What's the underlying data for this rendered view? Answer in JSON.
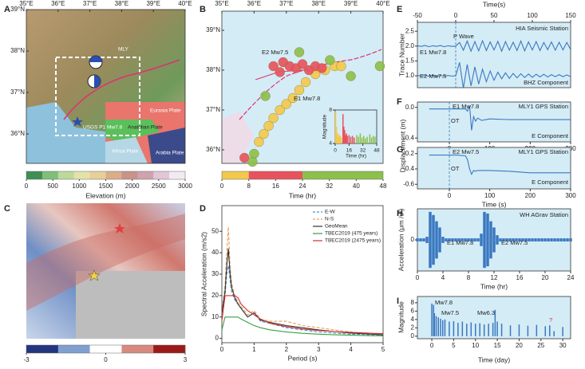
{
  "maps": [
    {
      "panel": "A",
      "xlim": [
        35,
        40
      ],
      "ylim": [
        35.29,
        39
      ],
      "xticks": [
        {
          "value": 35,
          "label": "35°E"
        },
        {
          "value": 36,
          "label": "36°E"
        },
        {
          "value": 37,
          "label": "37°E"
        },
        {
          "value": 38,
          "label": "38°E"
        },
        {
          "value": 39,
          "label": "39°E"
        },
        {
          "value": 40,
          "label": "40°E"
        }
      ],
      "yticks": [
        {
          "value": 39,
          "label": "39°N"
        },
        {
          "value": 38,
          "label": "38°N"
        },
        {
          "value": 37,
          "label": "37°N"
        },
        {
          "value": 36,
          "label": "36°N"
        }
      ],
      "labels": [
        "MLY",
        "USGS P1 Mw7.8",
        "Eurasia Plate",
        "Anatolian Plate",
        "Africa Plate",
        "Arabia Plate"
      ],
      "colorbar": {
        "label": "Elevation (m)",
        "lim": [
          0,
          3000
        ],
        "ticks": [
          0,
          500,
          1000,
          1500,
          2000,
          2500,
          3000
        ],
        "colors": [
          "#3f8f55",
          "#7fbf7a",
          "#bcd99a",
          "#e3e2a8",
          "#e6cf98",
          "#d9ae88",
          "#c9928a",
          "#cfa2ad",
          "#e2c6d6",
          "#f3eaf1"
        ]
      }
    },
    {
      "panel": "B",
      "xlim": [
        35,
        40
      ],
      "ylim": [
        35.66,
        39.48
      ],
      "xticks": [
        {
          "value": 35,
          "label": "35°E"
        },
        {
          "value": 36,
          "label": "36°E"
        },
        {
          "value": 37,
          "label": "37°E"
        },
        {
          "value": 38,
          "label": "38°E"
        },
        {
          "value": 39,
          "label": "39°E"
        },
        {
          "value": 40,
          "label": "40°E"
        }
      ],
      "yticks": [
        {
          "value": 39,
          "label": "39°N"
        },
        {
          "value": 38,
          "label": "38°N"
        },
        {
          "value": 37,
          "label": "37°N"
        },
        {
          "value": 36,
          "label": "36°N"
        }
      ],
      "labels": [
        "E2 Mw7.5",
        "E1 Mw7.8"
      ],
      "points": {
        "lon": [
          36.15,
          36.3,
          36.45,
          36.6,
          36.8,
          37.0,
          37.2,
          37.4,
          37.6,
          37.9,
          38.2,
          38.5,
          38.7,
          36.6,
          36.9,
          37.1,
          37.3,
          37.5,
          37.7,
          37.9,
          38.1,
          36.8,
          35.7,
          36.0,
          35.95,
          37.4,
          38.35,
          39.0,
          39.9,
          36.35
        ],
        "lat": [
          36.2,
          36.4,
          36.6,
          36.8,
          37.0,
          37.15,
          37.3,
          37.5,
          37.7,
          37.9,
          38.0,
          38.1,
          38.1,
          38.1,
          38.2,
          38.1,
          38.05,
          38.15,
          38.0,
          38.1,
          38.05,
          37.95,
          35.8,
          35.9,
          35.7,
          38.45,
          38.25,
          37.85,
          38.1,
          37.35
        ],
        "time": [
          1,
          2,
          3,
          1.5,
          2.5,
          4,
          5,
          6,
          3,
          7,
          6.5,
          5.5,
          4.5,
          10,
          12,
          9.5,
          14,
          11,
          16,
          18,
          20,
          22,
          13,
          30,
          40,
          26,
          35,
          44,
          28,
          33
        ]
      },
      "colorbar": {
        "label": "Time (hr)",
        "lim": [
          0,
          48
        ],
        "ticks": [
          0,
          8,
          16,
          24,
          32,
          40,
          48
        ],
        "segments": [
          {
            "from": 0,
            "to": 8,
            "color": "#f2c94c"
          },
          {
            "from": 8,
            "to": 24,
            "color": "#e8525c"
          },
          {
            "from": 24,
            "to": 48,
            "color": "#8cc04a"
          }
        ]
      },
      "inset": {
        "type": "stem",
        "xlabel": "Time (hr)",
        "ylabel": "Magnitude",
        "xlim": [
          0,
          48
        ],
        "ylim": [
          4,
          8
        ],
        "xticks": [
          0,
          16,
          32,
          48
        ],
        "yticks": [
          4,
          8
        ],
        "x": [
          0.5,
          1,
          1.5,
          2,
          3,
          4,
          5,
          6,
          7,
          9,
          10,
          11,
          12,
          13,
          14,
          16,
          18,
          20,
          22,
          25,
          27,
          29,
          31,
          33,
          35,
          37,
          40,
          42,
          44,
          46
        ],
        "series": [
          {
            "values": [
              7.8,
              5.5,
              6.0,
              5.0,
              5.2,
              4.8,
              5.0,
              4.9,
              4.7,
              7.5,
              6.0,
              5.6,
              5.0,
              5.2,
              4.9,
              5.0,
              4.8,
              4.9,
              4.7,
              5.0,
              4.8,
              5.2,
              4.7,
              4.9,
              4.6,
              4.8,
              5.1,
              4.7,
              4.9,
              4.8
            ]
          }
        ]
      }
    },
    {
      "panel": "C",
      "colorbar": {
        "lim": [
          -3,
          3
        ],
        "ticks": [
          -3,
          0,
          3
        ],
        "colors": [
          "#22357f",
          "#7f9fd0",
          "#ffffff",
          "#d88a80",
          "#9a1a1a"
        ]
      }
    }
  ],
  "chart_data": [
    {
      "type": "line",
      "panel": "D",
      "xlabel": "Period (s)",
      "ylabel": "Spectral Acceleration (m/s2)",
      "xlim": [
        0,
        5
      ],
      "ylim": [
        -2,
        62
      ],
      "xticks": [
        0,
        1,
        2,
        3,
        4,
        5
      ],
      "yticks": [
        0,
        10,
        20,
        30,
        40,
        50
      ],
      "legend": "upper right",
      "background": "#ffffff",
      "x": [
        0,
        0.1,
        0.15,
        0.2,
        0.25,
        0.3,
        0.4,
        0.5,
        0.6,
        0.8,
        1,
        1.2,
        1.5,
        2,
        2.5,
        3,
        3.5,
        4,
        4.5,
        5
      ],
      "series": [
        {
          "name": "E-W",
          "color": "#4a90c8",
          "dash": true,
          "values": [
            12,
            20,
            30,
            34,
            28,
            22,
            18,
            16,
            14,
            10,
            12,
            8,
            7,
            5,
            4,
            3,
            2.5,
            2,
            1.8,
            1.5
          ]
        },
        {
          "name": "N-S",
          "color": "#e8a060",
          "dash": true,
          "values": [
            12,
            25,
            40,
            52,
            35,
            26,
            20,
            17,
            15,
            11,
            13,
            9,
            8,
            8,
            6,
            5,
            4,
            3,
            2.5,
            2
          ]
        },
        {
          "name": "GeoMean",
          "color": "#333333",
          "dash": false,
          "values": [
            12,
            22,
            34,
            42,
            31,
            24,
            19,
            16,
            14,
            10,
            12,
            8.5,
            7.5,
            6,
            5,
            4,
            3.2,
            2.5,
            2.1,
            1.7
          ]
        },
        {
          "name": "TBEC2019 (475 years)",
          "color": "#3aa040",
          "dash": false,
          "values": [
            4,
            10,
            10,
            10,
            10,
            10,
            10,
            10,
            9,
            7.5,
            6,
            5,
            4,
            3,
            2.4,
            2,
            1.7,
            1.5,
            1.3,
            1.2
          ]
        },
        {
          "name": "TBEC2019 (2475 years)",
          "color": "#d03030",
          "dash": false,
          "values": [
            8,
            20,
            20,
            20,
            20,
            20,
            20,
            19,
            16,
            13,
            11,
            9,
            7,
            5.5,
            4.4,
            3.7,
            3.2,
            2.8,
            2.5,
            2.2
          ]
        }
      ]
    },
    {
      "type": "line",
      "panel": "E",
      "xlabel": "Time(s)",
      "ylabel": "Trace Number",
      "xaxis_position": "top",
      "xlim": [
        -50,
        150
      ],
      "ylim": [
        0.6,
        2.8
      ],
      "xticks": [
        -50,
        0,
        50,
        100,
        150
      ],
      "yticks": [
        {
          "value": 1,
          "label": "1.0"
        },
        1.5,
        {
          "value": 2,
          "label": "2.0"
        },
        2.5
      ],
      "background": "#d4ecf6",
      "annotations": [
        "P Wave",
        "HIA Seismic Station",
        "BHZ Component"
      ],
      "x": [
        -50,
        -45,
        -40,
        -35,
        -30,
        -25,
        -20,
        -15,
        -10,
        -5,
        0,
        5,
        10,
        15,
        20,
        25,
        30,
        35,
        40,
        45,
        50,
        55,
        60,
        65,
        70,
        75,
        80,
        85,
        90,
        95,
        100,
        105,
        110,
        115,
        120,
        125,
        130,
        135,
        140,
        145,
        150
      ],
      "series": [
        {
          "name": "E1 Mw7.8",
          "color": "#3a78c0",
          "values": [
            2.01,
            1.99,
            2.02,
            1.98,
            2.01,
            1.99,
            2.02,
            1.98,
            2.01,
            1.99,
            2.0,
            2.12,
            1.86,
            2.17,
            1.83,
            2.15,
            1.84,
            2.18,
            1.85,
            2.14,
            1.87,
            2.16,
            1.83,
            2.15,
            1.86,
            2.13,
            1.85,
            2.17,
            1.84,
            2.14,
            1.87,
            2.15,
            1.85,
            2.12,
            1.88,
            2.14,
            1.86,
            2.13,
            1.87,
            2.12,
            1.88
          ]
        },
        {
          "name": "E2 Mw7.5",
          "color": "#3a78c0",
          "values": [
            1.01,
            0.99,
            1.01,
            0.99,
            1.02,
            0.98,
            1.01,
            0.99,
            1.01,
            0.99,
            1.0,
            1.45,
            0.58,
            1.38,
            0.66,
            1.3,
            0.72,
            1.22,
            0.8,
            1.16,
            0.85,
            1.12,
            0.9,
            1.1,
            0.91,
            1.08,
            0.93,
            1.07,
            0.94,
            1.06,
            0.95,
            1.05,
            0.96,
            1.05,
            0.96,
            1.04,
            0.97,
            1.04,
            0.97,
            1.03,
            0.97
          ]
        }
      ]
    },
    {
      "type": "line",
      "panel": "F",
      "ylabel": "Displacement (m)",
      "xlim": [
        -79,
        300
      ],
      "ylim": [
        -0.45,
        0.07
      ],
      "xticks": [
        0,
        100,
        200,
        300
      ],
      "yticks": [
        {
          "value": 0,
          "label": "0.0"
        },
        -0.4
      ],
      "background": "#d4ecf6",
      "annotations": [
        "E1 Mw7.8",
        "OT",
        "MLY1 GPS Station",
        "E Component"
      ],
      "x": [
        -50,
        0,
        20,
        40,
        45,
        50,
        55,
        60,
        65,
        70,
        80,
        100,
        150,
        200,
        250,
        300
      ],
      "series": [
        {
          "color": "#3a78c0",
          "values": [
            -0.02,
            -0.02,
            -0.02,
            -0.02,
            -0.05,
            0.02,
            -0.3,
            -0.12,
            -0.18,
            -0.14,
            -0.17,
            -0.15,
            -0.16,
            -0.16,
            -0.16,
            -0.16
          ]
        }
      ]
    },
    {
      "type": "line",
      "panel": "G",
      "xlabel": "Time (s)",
      "xlim": [
        -79,
        300
      ],
      "ylim": [
        -0.66,
        -0.12
      ],
      "xticks": [
        0,
        100,
        200,
        300
      ],
      "yticks": [
        -0.2,
        -0.4,
        -0.6
      ],
      "background": "#d4ecf6",
      "annotations": [
        "E2 Mw7.5",
        "OT",
        "MLY1 GPS Station",
        "E Component"
      ],
      "x": [
        -50,
        0,
        20,
        40,
        45,
        50,
        55,
        60,
        65,
        70,
        80,
        100,
        150,
        200,
        250,
        300
      ],
      "series": [
        {
          "color": "#3a78c0",
          "values": [
            -0.22,
            -0.22,
            -0.22,
            -0.23,
            -0.28,
            -0.4,
            -0.47,
            -0.42,
            -0.43,
            -0.42,
            -0.42,
            -0.42,
            -0.43,
            -0.45,
            -0.45,
            -0.45
          ]
        }
      ]
    },
    {
      "type": "waveform",
      "panel": "H",
      "xlabel": "Time (hr)",
      "ylabel": "Acceleration (μm /s²)",
      "xlim": [
        0,
        24
      ],
      "ylim": [
        -1,
        1
      ],
      "xticks": [
        0,
        4,
        8,
        12,
        16,
        20,
        24
      ],
      "yticks": [
        0
      ],
      "background": "#d4ecf6",
      "annotations": [
        "WH AGrav Station",
        "E1 Mw7.8",
        "E2 Mw7.5"
      ],
      "x": [
        0,
        0.5,
        1,
        1.5,
        2,
        2.5,
        3,
        3.5,
        4,
        4.5,
        5,
        5.5,
        6,
        6.5,
        7,
        7.5,
        8,
        8.5,
        9,
        9.5,
        10,
        10.5,
        11,
        11.5,
        12,
        12.5,
        13,
        13.5,
        14,
        14.5,
        15,
        15.5,
        16,
        16.5,
        17,
        17.5,
        18,
        18.5,
        19,
        19.5,
        20,
        20.5,
        21,
        21.5,
        22,
        22.5,
        23,
        23.5,
        24
      ],
      "series": [
        {
          "color": "#3a78c0",
          "values": [
            0.05,
            0.05,
            0.05,
            0.1,
            0.9,
            0.8,
            0.6,
            0.4,
            0.1,
            0.05,
            0.05,
            0.05,
            0.05,
            0.05,
            0.05,
            0.05,
            0.05,
            0.05,
            0.05,
            0.05,
            0.2,
            0.9,
            0.85,
            0.6,
            0.4,
            0.15,
            0.05,
            0.05,
            0.05,
            0.05,
            0.05,
            0.05,
            0.05,
            0.05,
            0.05,
            0.05,
            0.05,
            0.05,
            0.05,
            0.05,
            0.05,
            0.05,
            0.05,
            0.05,
            0.05,
            0.05,
            0.05,
            0.05,
            0.05
          ]
        }
      ]
    },
    {
      "type": "stem",
      "panel": "I",
      "xlabel": "Time (day)",
      "ylabel": "Magnitude",
      "xlim": [
        -3.3,
        31.8
      ],
      "ylim": [
        -0.6,
        9.5
      ],
      "xticks": [
        0,
        5,
        10,
        15,
        20,
        25,
        30
      ],
      "yticks": [
        0,
        2,
        4,
        6,
        8
      ],
      "background": "#d4ecf6",
      "annotations": [
        "Mw7.8",
        "Mw7.5",
        "Mw6.3",
        "?"
      ],
      "x": [
        0,
        0.4,
        0.6,
        1,
        1.5,
        2,
        2.5,
        3,
        4,
        5,
        6,
        7,
        8,
        9,
        10,
        11,
        12,
        13,
        14,
        14.5,
        15,
        16,
        18,
        20,
        22,
        24,
        26,
        27,
        28,
        30
      ],
      "series": [
        {
          "color": "#3a78c0",
          "values": [
            7.8,
            7.5,
            5.5,
            4.8,
            4.5,
            4.2,
            3.8,
            4.0,
            3.5,
            3.6,
            3.2,
            3.5,
            3.0,
            3.3,
            3.0,
            3.1,
            2.8,
            3.0,
            3.2,
            6.3,
            3.5,
            3.0,
            2.6,
            2.8,
            2.5,
            2.7,
            2.4,
            2.6,
            1.2,
            2.2
          ]
        }
      ]
    }
  ]
}
